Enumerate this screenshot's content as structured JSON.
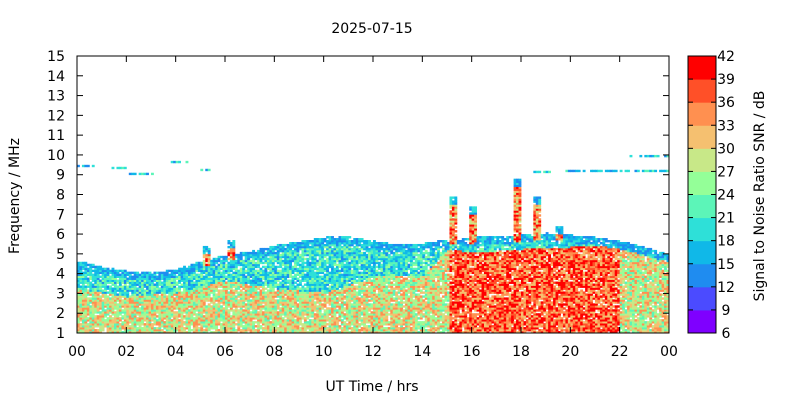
{
  "chart_data": {
    "type": "heatmap",
    "title": "2025-07-15",
    "xlabel": "UT Time / hrs",
    "ylabel": "Frequency / MHz",
    "colorbar_label": "Signal to Noise Ratio SNR / dB",
    "xlim": [
      0,
      24
    ],
    "ylim": [
      1,
      15
    ],
    "x_ticks": [
      "00",
      "02",
      "04",
      "06",
      "08",
      "10",
      "12",
      "14",
      "16",
      "18",
      "20",
      "22",
      "00"
    ],
    "y_ticks": [
      "1",
      "2",
      "3",
      "4",
      "5",
      "6",
      "7",
      "8",
      "9",
      "10",
      "11",
      "12",
      "13",
      "14",
      "15"
    ],
    "colorbar_ticks": [
      "6",
      "9",
      "12",
      "15",
      "18",
      "21",
      "24",
      "27",
      "30",
      "33",
      "36",
      "39",
      "42"
    ],
    "colorbar_range": [
      6,
      42
    ],
    "colorbar_colors": [
      "#7f00ff",
      "#4b4bff",
      "#1f8cf0",
      "#10b8e8",
      "#2ee0d8",
      "#5cf5b8",
      "#94ff98",
      "#c8e888",
      "#f5c070",
      "#ff9050",
      "#ff5028",
      "#ff0000"
    ],
    "grid": false,
    "legend": "colorbar-right",
    "regions": {
      "upper_boundary_mhz": [
        [
          0,
          4.6
        ],
        [
          1,
          4.3
        ],
        [
          2,
          4.1
        ],
        [
          3,
          4.0
        ],
        [
          4,
          4.2
        ],
        [
          5,
          4.6
        ],
        [
          6,
          4.9
        ],
        [
          7,
          5.1
        ],
        [
          8,
          5.4
        ],
        [
          9,
          5.6
        ],
        [
          10,
          5.8
        ],
        [
          11,
          5.8
        ],
        [
          12,
          5.6
        ],
        [
          13,
          5.4
        ],
        [
          14,
          5.5
        ],
        [
          15,
          5.7
        ],
        [
          16,
          5.8
        ],
        [
          17,
          5.8
        ],
        [
          18,
          5.9
        ],
        [
          19,
          6.0
        ],
        [
          20,
          5.9
        ],
        [
          21,
          5.8
        ],
        [
          22,
          5.6
        ],
        [
          23,
          5.3
        ],
        [
          24,
          4.9
        ]
      ],
      "strong_zone_mhz": [
        [
          0,
          3.2
        ],
        [
          2,
          2.8
        ],
        [
          4,
          3.0
        ],
        [
          6,
          3.6
        ],
        [
          8,
          3.2
        ],
        [
          10,
          3.0
        ],
        [
          12,
          3.8
        ],
        [
          14,
          3.9
        ],
        [
          15,
          5.2
        ],
        [
          16,
          5.0
        ],
        [
          18,
          5.2
        ],
        [
          20,
          5.3
        ],
        [
          22,
          5.3
        ],
        [
          24,
          4.8
        ]
      ],
      "spikes": [
        {
          "time": 5.2,
          "top_mhz": 5.3
        },
        {
          "time": 6.2,
          "top_mhz": 5.6
        },
        {
          "time": 15.2,
          "top_mhz": 7.8
        },
        {
          "time": 16.0,
          "top_mhz": 7.3
        },
        {
          "time": 17.8,
          "top_mhz": 8.7
        },
        {
          "time": 18.6,
          "top_mhz": 7.8
        },
        {
          "time": 19.5,
          "top_mhz": 6.3
        }
      ],
      "es_traces": [
        {
          "t0": 0.0,
          "t1": 0.7,
          "freq": 9.4
        },
        {
          "t0": 1.4,
          "t1": 2.1,
          "freq": 9.3
        },
        {
          "t0": 2.1,
          "t1": 3.2,
          "freq": 9.0
        },
        {
          "t0": 3.8,
          "t1": 4.5,
          "freq": 9.6
        },
        {
          "t0": 5.0,
          "t1": 5.3,
          "freq": 9.2
        },
        {
          "t0": 18.5,
          "t1": 19.3,
          "freq": 9.1
        },
        {
          "t0": 19.8,
          "t1": 24.0,
          "freq": 9.15
        },
        {
          "t0": 22.3,
          "t1": 24.0,
          "freq": 9.9
        }
      ]
    }
  }
}
